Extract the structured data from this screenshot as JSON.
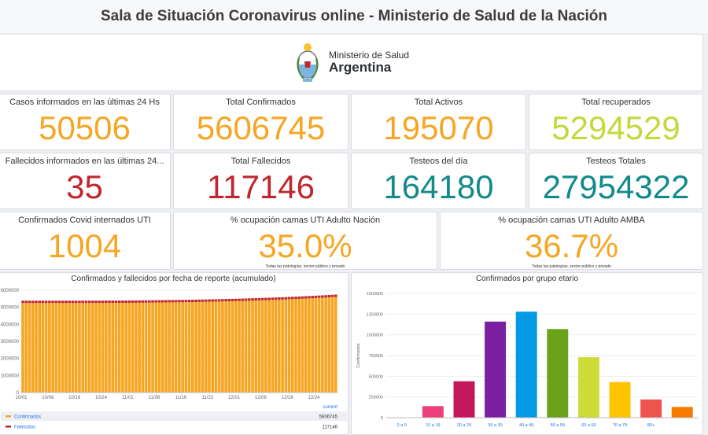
{
  "header": {
    "title": "Sala de Situación Coronavirus online - Ministerio de Salud de la Nación"
  },
  "logo": {
    "line1": "Ministerio de Salud",
    "line2": "Argentina"
  },
  "stats": [
    {
      "label": "Casos informados en las últimas 24 Hs",
      "value": "50506",
      "color": "#f6a623"
    },
    {
      "label": "Total Confirmados",
      "value": "5606745",
      "color": "#f6a623"
    },
    {
      "label": "Total Activos",
      "value": "195070",
      "color": "#f6a623"
    },
    {
      "label": "Total recuperados",
      "value": "5294529",
      "color": "#c5d83b"
    },
    {
      "label": "Fallecidos informados en las últimas 24...",
      "value": "35",
      "color": "#c0272d"
    },
    {
      "label": "Total Fallecidos",
      "value": "117146",
      "color": "#c0272d"
    },
    {
      "label": "Testeos del día",
      "value": "164180",
      "color": "#138a8a"
    },
    {
      "label": "Testeos Totales",
      "value": "27954322",
      "color": "#138a8a"
    },
    {
      "label": "Confirmados Covid internados UTI",
      "value": "1004",
      "color": "#f6a623"
    },
    {
      "label": "% ocupación camas UTI Adulto Nación",
      "value": "35.0%",
      "color": "#f6a623",
      "note": "Todas las patologías, sector público y privado"
    },
    {
      "label": "% ocupación camas UTI Adulto AMBA",
      "value": "36.7%",
      "color": "#f6a623",
      "note": "Todas las patologías, sector público y privado"
    }
  ],
  "legend": {
    "header": "current",
    "items": [
      {
        "label": "Confirmados",
        "value": "5606745",
        "color": "#f6a623"
      },
      {
        "label": "Fallecidos",
        "value": "117146",
        "color": "#c0272d"
      }
    ]
  },
  "chart_data": [
    {
      "type": "bar",
      "title": "Confirmados y fallecidos por fecha de reporte (acumulado)",
      "x_ticks": [
        "10/01",
        "10/08",
        "10/16",
        "10/24",
        "11/01",
        "11/08",
        "11/16",
        "11/23",
        "12/01",
        "12/08",
        "12/16",
        "12/24"
      ],
      "y_ticks": [
        "0",
        "1000000",
        "2000000",
        "3000000",
        "4000000",
        "5000000",
        "6000000"
      ],
      "ylim": [
        0,
        6000000
      ],
      "series": [
        {
          "name": "Confirmados",
          "color": "#f6a623",
          "start": 5250000,
          "end": 5606745
        },
        {
          "name": "Fallecidos",
          "color": "#c0272d",
          "start": 115000,
          "end": 117146
        }
      ],
      "n_days": 95,
      "legend_position": "bottom"
    },
    {
      "type": "bar",
      "title": "Confirmados por grupo etario",
      "ylabel": "Confirmados",
      "categories": [
        "0 a 9",
        "10 a 19",
        "20 a 29",
        "30 a 39",
        "40 a 49",
        "50 a 59",
        "60 a 69",
        "70 a 79",
        "80+",
        ""
      ],
      "values": [
        0,
        140000,
        440000,
        1160000,
        1280000,
        1070000,
        730000,
        430000,
        220000,
        130000
      ],
      "colors": [
        "#e8e8e8",
        "#ec407a",
        "#c2185b",
        "#7b1fa2",
        "#039be5",
        "#6aa21a",
        "#cddc39",
        "#ffc400",
        "#ef5350",
        "#f57c00"
      ],
      "y_ticks": [
        "0",
        "250000",
        "500000",
        "750000",
        "1000000",
        "1250000",
        "1500000"
      ],
      "ylim": [
        0,
        1500000
      ]
    }
  ]
}
